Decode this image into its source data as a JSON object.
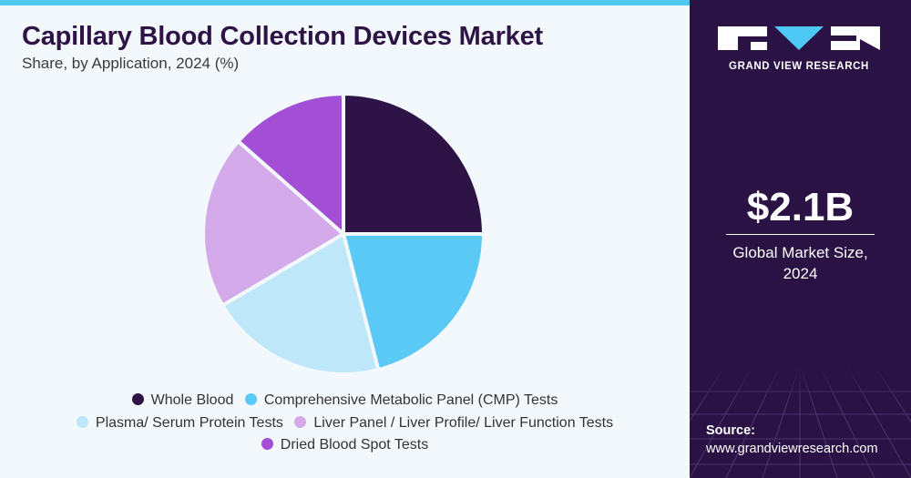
{
  "header": {
    "title": "Capillary Blood Collection Devices Market",
    "subtitle": "Share, by Application, 2024 (%)"
  },
  "chart_data": {
    "type": "pie",
    "title": "Capillary Blood Collection Devices Market",
    "subtitle": "Share, by Application, 2024 (%)",
    "categories": [
      "Whole Blood",
      "Comprehensive Metabolic Panel (CMP) Tests",
      "Plasma/ Serum Protein Tests",
      "Liver Panel / Liver Profile/ Liver Function Tests",
      "Dried Blood Spot Tests"
    ],
    "values": [
      25,
      21,
      20.5,
      20,
      13.5
    ],
    "colors": [
      "#2e1446",
      "#5bc9f5",
      "#bfe7fa",
      "#d3a9ea",
      "#a24fd6"
    ],
    "legend_position": "bottom",
    "grid": false
  },
  "sidebar": {
    "brand": "GRAND VIEW RESEARCH",
    "market_value": "$2.1B",
    "market_label_line1": "Global Market Size,",
    "market_label_line2": "2024",
    "source_label": "Source:",
    "source_url": "www.grandviewresearch.com"
  }
}
